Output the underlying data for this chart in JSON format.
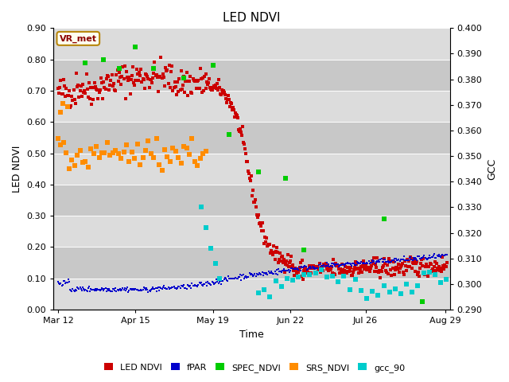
{
  "title": "LED NDVI",
  "xlabel": "Time",
  "ylabel_left": "LED NDVI",
  "ylabel_right": "GCC",
  "annotation": "VR_met",
  "ylim_left": [
    0.0,
    0.9
  ],
  "ylim_right": [
    0.29,
    0.4
  ],
  "yticks_left": [
    0.0,
    0.1,
    0.2,
    0.3,
    0.4,
    0.5,
    0.6,
    0.7,
    0.8,
    0.9
  ],
  "yticks_right": [
    0.29,
    0.3,
    0.31,
    0.32,
    0.33,
    0.34,
    0.35,
    0.36,
    0.37,
    0.38,
    0.39,
    0.4
  ],
  "xtick_labels": [
    "Mar 12",
    "Apr 15",
    "May 19",
    "Jun 22",
    "Jul 26",
    "Aug 29"
  ],
  "xtick_pos": [
    0,
    34,
    68,
    102,
    135,
    170
  ],
  "colors": {
    "LED_NDVI": "#CC0000",
    "fPAR": "#0000CC",
    "SPEC_NDVI": "#00CC00",
    "SRS_NDVI": "#FF8C00",
    "gcc_90": "#00CCCC"
  },
  "band_light": "#DCDCDC",
  "band_dark": "#C8C8C8",
  "bg_color": "#FFFFFF",
  "legend_labels": [
    "LED NDVI",
    "fPAR",
    "SPEC_NDVI",
    "SRS_NDVI",
    "gcc_90"
  ],
  "legend_colors": [
    "#CC0000",
    "#0000CC",
    "#00CC00",
    "#FF8C00",
    "#00CCCC"
  ]
}
